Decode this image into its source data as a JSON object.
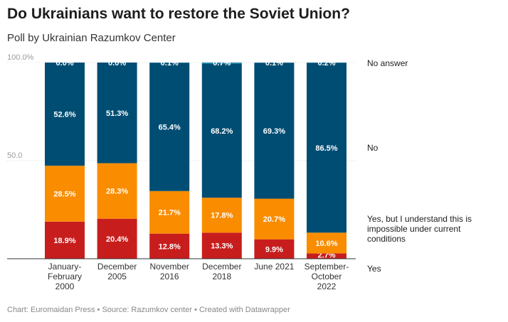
{
  "title": "Do Ukrainians want to restore the Soviet Union?",
  "subtitle": "Poll by Ukrainian Razumkov Center",
  "footer": "Chart: Euromaidan Press • Source: Razumkov center • Created with Datawrapper",
  "chart_data": {
    "type": "bar",
    "stacked": true,
    "categories": [
      [
        "January-",
        "February",
        "2000"
      ],
      [
        "December",
        "2005"
      ],
      [
        "November",
        "2016"
      ],
      [
        "December",
        "2018"
      ],
      [
        "June 2021"
      ],
      [
        "September-",
        "October",
        "2022"
      ]
    ],
    "series": [
      {
        "name": "Yes",
        "color": "#c71e1d",
        "values": [
          18.9,
          20.4,
          12.8,
          13.3,
          9.9,
          2.7
        ],
        "labels": [
          "18.9%",
          "20.4%",
          "12.8%",
          "13.3%",
          "9.9%",
          "2.7%"
        ]
      },
      {
        "name": "Yes, but I understand this is impossible under current conditions",
        "color": "#fa8c00",
        "values": [
          28.5,
          28.3,
          21.7,
          17.8,
          20.7,
          10.6
        ],
        "labels": [
          "28.5%",
          "28.3%",
          "21.7%",
          "17.8%",
          "20.7%",
          "10.6%"
        ]
      },
      {
        "name": "No",
        "color": "#004d73",
        "values": [
          52.6,
          51.3,
          65.4,
          68.2,
          69.3,
          86.5
        ],
        "labels": [
          "52.6%",
          "51.3%",
          "65.4%",
          "68.2%",
          "69.3%",
          "86.5%"
        ]
      },
      {
        "name": "No answer",
        "color": "#1d81a2",
        "values": [
          0.0,
          0.0,
          0.1,
          0.7,
          0.1,
          0.2
        ],
        "labels": [
          "0.0%",
          "0.0%",
          "0.1%",
          "0.7%",
          "0.1%",
          "0.2%"
        ]
      }
    ],
    "legend_lines": [
      [
        "No answer"
      ],
      [
        "No"
      ],
      [
        "Yes, but I understand this is",
        "impossible under current",
        "conditions"
      ],
      [
        "Yes"
      ]
    ],
    "yticks": [
      {
        "value": 100,
        "label": "100.0%"
      },
      {
        "value": 50,
        "label": "50.0"
      }
    ],
    "ylim": [
      0,
      100
    ],
    "grid": true,
    "legend_position": "right"
  }
}
